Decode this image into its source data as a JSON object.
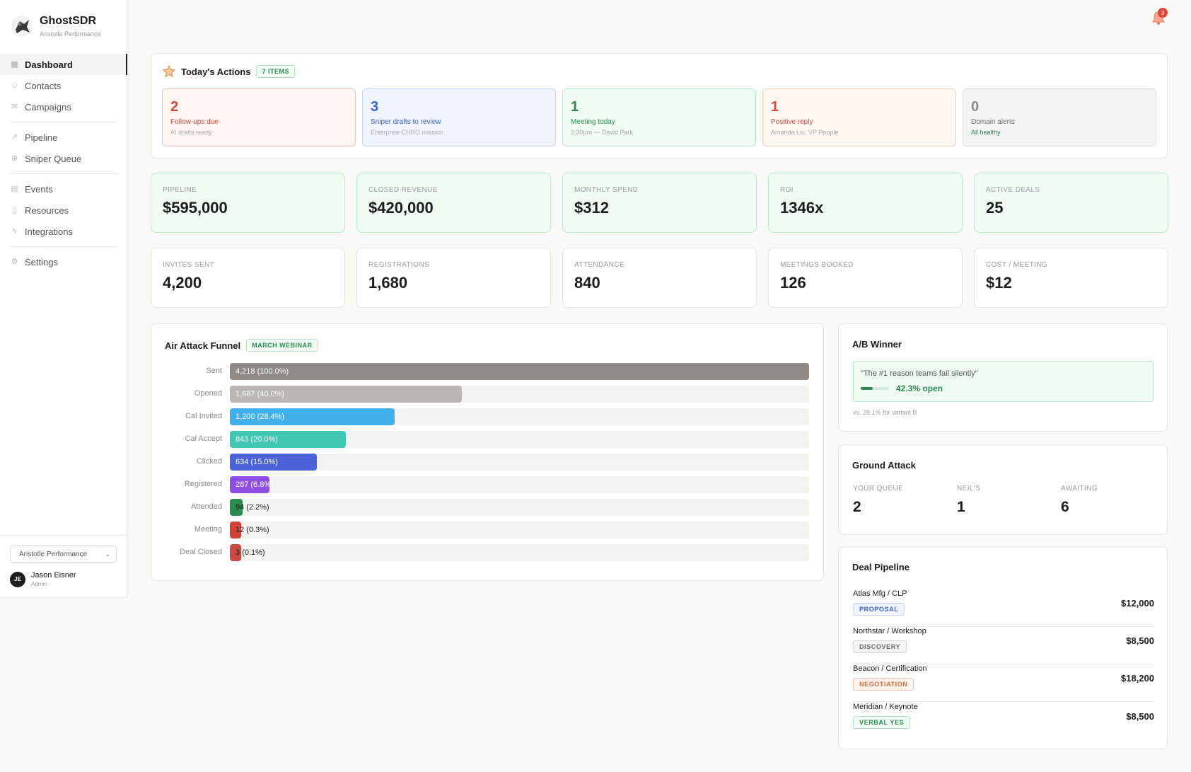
{
  "app": {
    "name": "GhostSDR",
    "org": "Aristotle Performance"
  },
  "nav": [
    {
      "label": "Dashboard",
      "icon": "dashboard-icon",
      "active": true
    },
    {
      "label": "Contacts",
      "icon": "contacts-icon"
    },
    {
      "label": "Campaigns",
      "icon": "mail-icon"
    },
    {
      "label": "Pipeline",
      "icon": "trend-icon"
    },
    {
      "label": "Sniper Queue",
      "icon": "target-icon"
    },
    {
      "label": "Events",
      "icon": "calendar-icon"
    },
    {
      "label": "Resources",
      "icon": "file-icon"
    },
    {
      "label": "Integrations",
      "icon": "plug-icon"
    },
    {
      "label": "Settings",
      "icon": "gear-icon"
    }
  ],
  "footer": {
    "org_select": "Aristotle Performance",
    "user": {
      "initials": "JE",
      "name": "Jason Eisner",
      "role": "Admin"
    }
  },
  "notifications": {
    "count": "3"
  },
  "actions": {
    "title": "Today's Actions",
    "badge": "7 ITEMS",
    "items": [
      {
        "num": "2",
        "label": "Follow-ups due",
        "sub": "AI drafts ready",
        "color": "#d9453a"
      },
      {
        "num": "3",
        "label": "Sniper drafts to review",
        "sub": "Enterprise CHRO mission",
        "color": "#3b63d6"
      },
      {
        "num": "1",
        "label": "Meeting today",
        "sub": "2:30pm — David Park",
        "color": "#2c8a4e"
      },
      {
        "num": "1",
        "label": "Positive reply",
        "sub": "Amanda Liu, VP People",
        "color": "#d9453a"
      },
      {
        "num": "0",
        "label": "Domain alerts",
        "sub": "All healthy",
        "color": "#8a8a8a"
      }
    ]
  },
  "kpis": [
    {
      "label": "PIPELINE",
      "value": "$595,000"
    },
    {
      "label": "CLOSED REVENUE",
      "value": "$420,000"
    },
    {
      "label": "MONTHLY SPEND",
      "value": "$312"
    },
    {
      "label": "ROI",
      "value": "1346x"
    },
    {
      "label": "ACTIVE DEALS",
      "value": "25"
    }
  ],
  "stats": [
    {
      "label": "INVITES SENT",
      "value": "4,200"
    },
    {
      "label": "REGISTRATIONS",
      "value": "1,680"
    },
    {
      "label": "ATTENDANCE",
      "value": "840"
    },
    {
      "label": "MEETINGS BOOKED",
      "value": "126"
    },
    {
      "label": "COST / MEETING",
      "value": "$12"
    }
  ],
  "funnel": {
    "title": "Air Attack Funnel",
    "badge": "MARCH WEBINAR",
    "rows": [
      {
        "label": "Sent",
        "text": "4,218 (100.0%)",
        "pct": 100.0,
        "color": "#8e8a87"
      },
      {
        "label": "Opened",
        "text": "1,687 (40.0%)",
        "pct": 40.0,
        "color": "#b9b6b3"
      },
      {
        "label": "Cal Invited",
        "text": "1,200 (28.4%)",
        "pct": 28.4,
        "color": "#3fb0ea"
      },
      {
        "label": "Cal Accept",
        "text": "843 (20.0%)",
        "pct": 20.0,
        "color": "#3fc7b3"
      },
      {
        "label": "Clicked",
        "text": "634 (15.0%)",
        "pct": 15.0,
        "color": "#4a63d9"
      },
      {
        "label": "Registered",
        "text": "287 (6.8%)",
        "pct": 6.8,
        "color": "#8e4fe0"
      },
      {
        "label": "Attended",
        "text": "94 (2.2%)",
        "pct": 2.2,
        "color": "#2c8a4e"
      },
      {
        "label": "Meeting",
        "text": "12 (0.3%)",
        "pct": 0.3,
        "color": "#d0413a"
      },
      {
        "label": "Deal Closed",
        "text": "3 (0.1%)",
        "pct": 0.1,
        "color": "#c74a44"
      }
    ]
  },
  "ab": {
    "title": "A/B Winner",
    "quote": "\"The #1 reason teams fail silently\"",
    "open_rate": "42.3% open",
    "open_pct": 42.3,
    "vs": "vs. 28.1% for variant B"
  },
  "ground": {
    "title": "Ground Attack",
    "cols": [
      {
        "label": "YOUR QUEUE",
        "value": "2"
      },
      {
        "label": "NEIL'S",
        "value": "1"
      },
      {
        "label": "AWAITING",
        "value": "6"
      }
    ]
  },
  "deals": {
    "title": "Deal Pipeline",
    "items": [
      {
        "name": "Atlas Mfg / CLP",
        "stage": "PROPOSAL",
        "amount": "$12,000",
        "fg": "#3b63d6",
        "bg": "#eef3fe",
        "bd": "#c7d6f8"
      },
      {
        "name": "Northstar / Workshop",
        "stage": "DISCOVERY",
        "amount": "$8,500",
        "fg": "#6b6b6b",
        "bg": "#f3f3f2",
        "bd": "#d8d8d6"
      },
      {
        "name": "Beacon / Certification",
        "stage": "NEGOTIATION",
        "amount": "$18,200",
        "fg": "#d9663a",
        "bg": "#fff4ee",
        "bd": "#f3c7ae"
      },
      {
        "name": "Meridian / Keynote",
        "stage": "VERBAL YES",
        "amount": "$8,500",
        "fg": "#2c8a4e",
        "bg": "#effbf3",
        "bd": "#b8e8c8"
      }
    ]
  }
}
